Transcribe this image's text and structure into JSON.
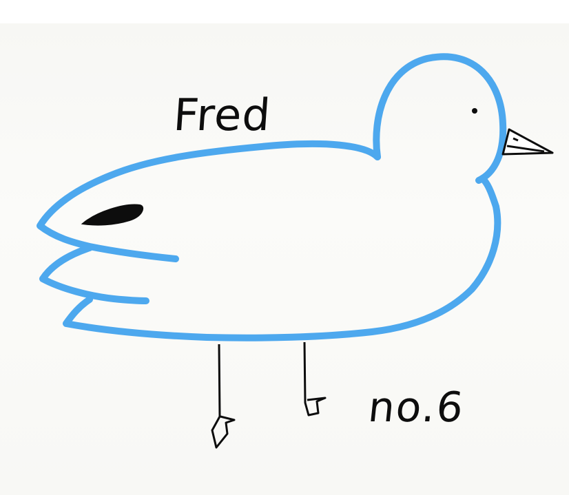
{
  "drawing": {
    "name_label": "Fred",
    "number_label": "no.6"
  },
  "colors": {
    "outline_blue": "#4da8ee",
    "ink_black": "#0d0d0d",
    "paper": "#f8f8f5"
  }
}
